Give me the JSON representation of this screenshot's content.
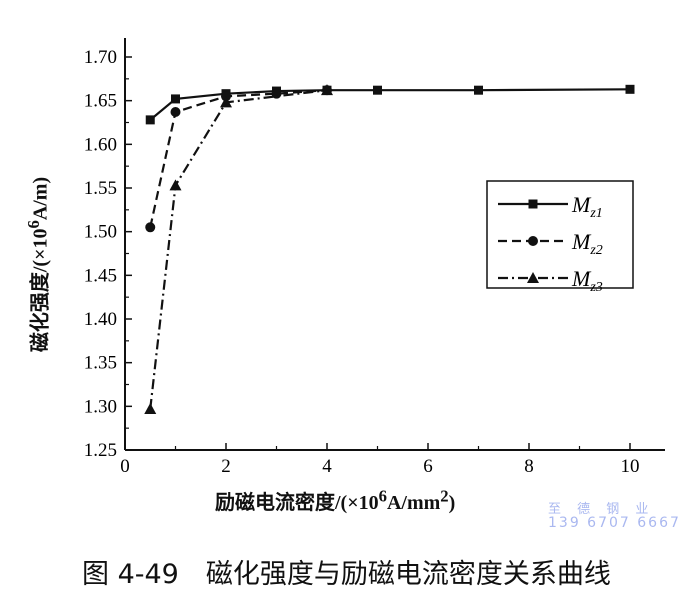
{
  "chart_data": {
    "type": "line",
    "title": "",
    "xlabel": "励磁电流密度/(×10^6A/mm^2)",
    "ylabel": "磁化强度/(×10^6A/m)",
    "xlim": [
      0,
      10
    ],
    "ylim": [
      1.25,
      1.7
    ],
    "xticks": [
      "0",
      "2",
      "4",
      "6",
      "8",
      "10"
    ],
    "yticks": [
      "1.25",
      "1.30",
      "1.35",
      "1.40",
      "1.45",
      "1.50",
      "1.55",
      "1.60",
      "1.65",
      "1.70"
    ],
    "grid": false,
    "legend": "right-middle",
    "series": [
      {
        "name": "Mz1",
        "style": "solid",
        "marker": "square",
        "x": [
          0.5,
          1,
          2,
          3,
          4,
          5,
          7,
          10
        ],
        "y": [
          1.628,
          1.652,
          1.658,
          1.661,
          1.662,
          1.662,
          1.662,
          1.663
        ]
      },
      {
        "name": "Mz2",
        "style": "dashed",
        "marker": "circle",
        "x": [
          0.5,
          1,
          2,
          3,
          4
        ],
        "y": [
          1.505,
          1.637,
          1.655,
          1.658,
          1.662
        ]
      },
      {
        "name": "Mz3",
        "style": "dashdot",
        "marker": "triangle",
        "x": [
          0.5,
          1,
          2,
          4
        ],
        "y": [
          1.297,
          1.553,
          1.648,
          1.662
        ]
      }
    ]
  },
  "legend_labels": [
    {
      "m": "M",
      "sub": "z1"
    },
    {
      "m": "M",
      "sub": "z2"
    },
    {
      "m": "M",
      "sub": "z3"
    }
  ],
  "caption": "图 4-49　磁化强度与励磁电流密度关系曲线",
  "watermark": {
    "line1": "至 德 钢 业",
    "line2": "139 6707 6667"
  }
}
